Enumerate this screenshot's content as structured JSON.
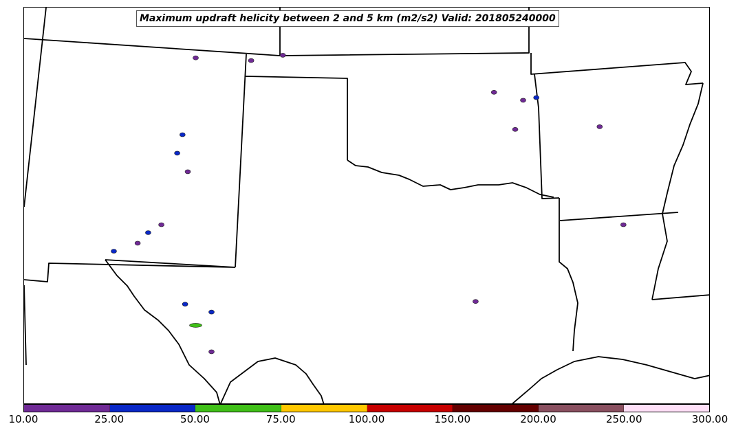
{
  "title": "Maximum updraft helicity between 2 and 5 km (m2/s2) Valid: 201805240000",
  "colorbar": {
    "colors": [
      "#702a96",
      "#0a28c8",
      "#40c018",
      "#ffc800",
      "#c80000",
      "#640000",
      "#8a5060",
      "#ffe0f8"
    ],
    "tick_labels": [
      "10.00",
      "25.00",
      "50.00",
      "75.00",
      "100.00",
      "150.00",
      "200.00",
      "250.00",
      "300.00"
    ]
  },
  "boundary_color": "#000000",
  "helicity_cells": [
    {
      "lon": -104.5,
      "lat": 38.9,
      "level": 0
    },
    {
      "lon": -102.4,
      "lat": 38.8,
      "level": 0
    },
    {
      "lon": -101.2,
      "lat": 39.0,
      "level": 0
    },
    {
      "lon": -105.0,
      "lat": 36.0,
      "level": 1
    },
    {
      "lon": -105.2,
      "lat": 35.3,
      "level": 1
    },
    {
      "lon": -104.8,
      "lat": 34.6,
      "level": 0
    },
    {
      "lon": -105.8,
      "lat": 32.6,
      "level": 0
    },
    {
      "lon": -106.3,
      "lat": 32.3,
      "level": 1
    },
    {
      "lon": -106.7,
      "lat": 31.9,
      "level": 0
    },
    {
      "lon": -107.6,
      "lat": 31.6,
      "level": 1
    },
    {
      "lon": -104.9,
      "lat": 29.6,
      "level": 1
    },
    {
      "lon": -103.9,
      "lat": 29.3,
      "level": 1
    },
    {
      "lon": -104.5,
      "lat": 28.8,
      "level": 2
    },
    {
      "lon": -103.9,
      "lat": 27.8,
      "level": 0
    },
    {
      "lon": -93.2,
      "lat": 37.6,
      "level": 0
    },
    {
      "lon": -92.1,
      "lat": 37.3,
      "level": 0
    },
    {
      "lon": -91.6,
      "lat": 37.4,
      "level": 1
    },
    {
      "lon": -92.4,
      "lat": 36.2,
      "level": 0
    },
    {
      "lon": -89.2,
      "lat": 36.3,
      "level": 0
    },
    {
      "lon": -88.3,
      "lat": 32.6,
      "level": 0
    },
    {
      "lon": -93.9,
      "lat": 29.7,
      "level": 0
    }
  ]
}
